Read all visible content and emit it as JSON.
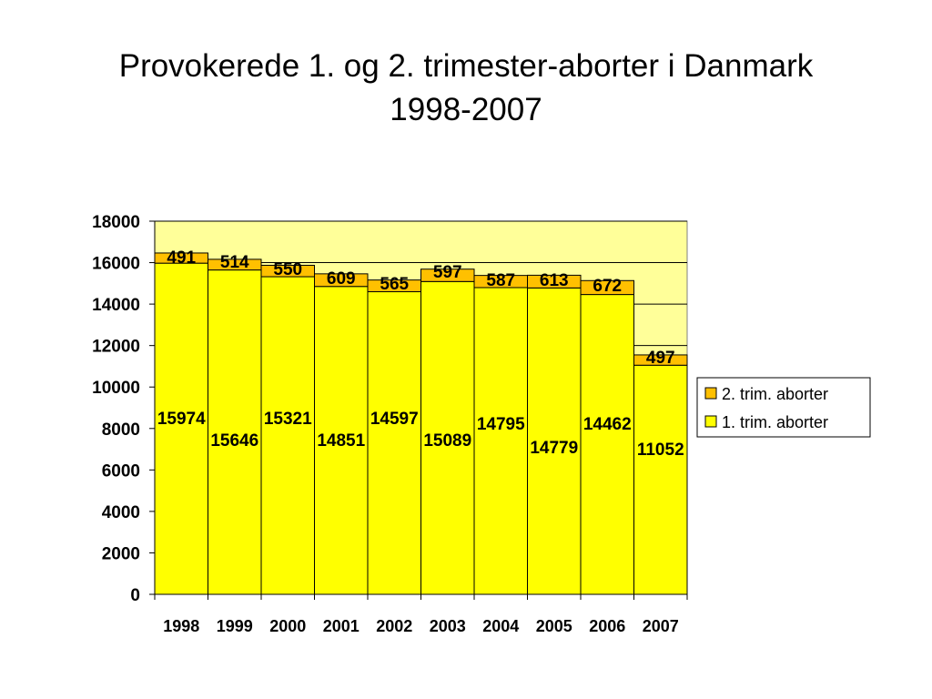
{
  "title_line1": "Provokerede 1. og 2. trimester-aborter i Danmark",
  "title_line2": "1998-2007",
  "colors": {
    "plot_bg": "#FFFF99",
    "trim1": "#FFFF00",
    "trim2": "#FFC000",
    "grid": "#000000"
  },
  "chart_data": {
    "type": "bar",
    "stacked": true,
    "categories": [
      "1998",
      "1999",
      "2000",
      "2001",
      "2002",
      "2003",
      "2004",
      "2005",
      "2006",
      "2007"
    ],
    "series": [
      {
        "name": "1. trim. aborter",
        "values": [
          15974,
          15646,
          15321,
          14851,
          14597,
          15089,
          14795,
          14779,
          14462,
          11052
        ]
      },
      {
        "name": "2. trim. aborter",
        "values": [
          491,
          514,
          550,
          609,
          565,
          597,
          587,
          613,
          672,
          497
        ]
      }
    ],
    "ylim": [
      0,
      18000
    ],
    "yticks": [
      "0",
      "2000",
      "4000",
      "6000",
      "8000",
      "10000",
      "12000",
      "14000",
      "16000",
      "18000"
    ],
    "grid": true,
    "legend_position": "right",
    "legend": [
      "2. trim. aborter",
      "1. trim. aborter"
    ]
  }
}
